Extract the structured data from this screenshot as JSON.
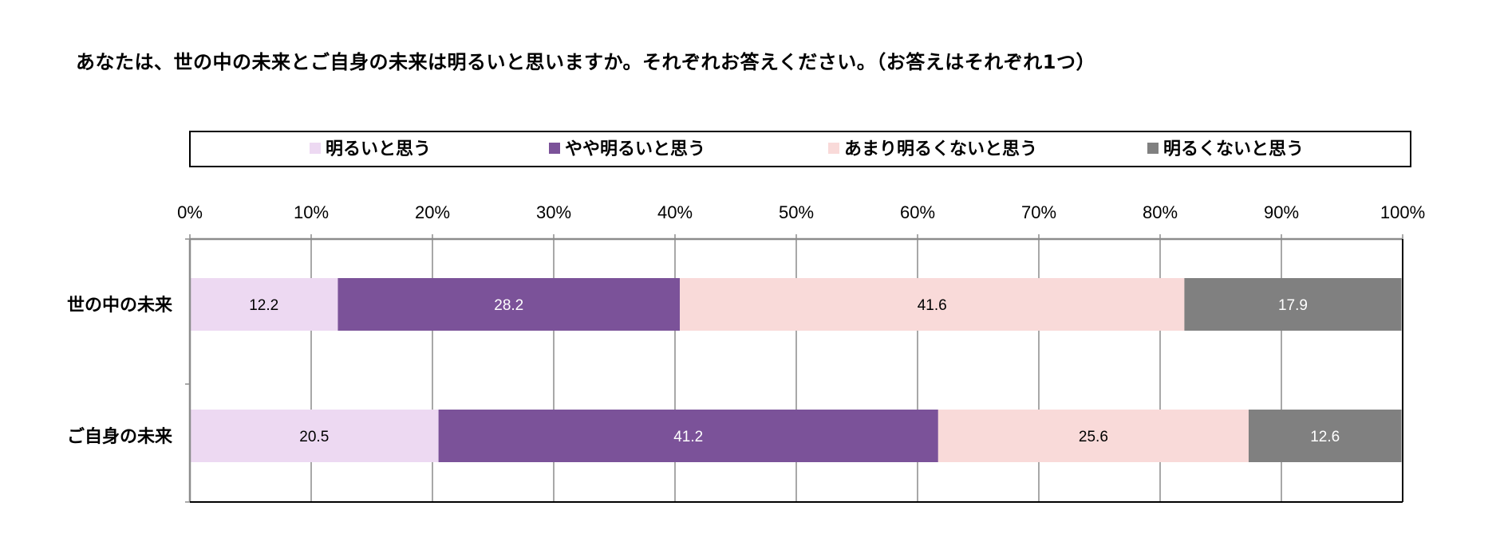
{
  "page": {
    "question": "あなたは、世の中の未来とご自身の未来は明るいと思いますか。それぞれお答えください。（お答えはそれぞれ1つ）"
  },
  "chart_data": {
    "type": "bar",
    "orientation": "horizontal",
    "stacked": "percent",
    "title": "",
    "xlim": [
      0,
      100
    ],
    "x_ticks": [
      "0%",
      "10%",
      "20%",
      "30%",
      "40%",
      "50%",
      "60%",
      "70%",
      "80%",
      "90%",
      "100%"
    ],
    "x_tick_position": "top",
    "grid": "vertical",
    "legend_position": "top",
    "categories": [
      "世の中の未来",
      "ご自身の未来"
    ],
    "series": [
      {
        "name": "明るいと思う",
        "color": "#EDD9F2",
        "label_color": "#000000",
        "values": [
          12.2,
          20.5
        ]
      },
      {
        "name": "やや明るいと思う",
        "color": "#7B5299",
        "label_color": "#FFFFFF",
        "values": [
          28.2,
          41.2
        ]
      },
      {
        "name": "あまり明るくないと思う",
        "color": "#F9DAD9",
        "label_color": "#000000",
        "values": [
          41.6,
          25.6
        ]
      },
      {
        "name": "明るくないと思う",
        "color": "#808080",
        "label_color": "#FFFFFF",
        "values": [
          17.9,
          12.6
        ]
      }
    ]
  }
}
